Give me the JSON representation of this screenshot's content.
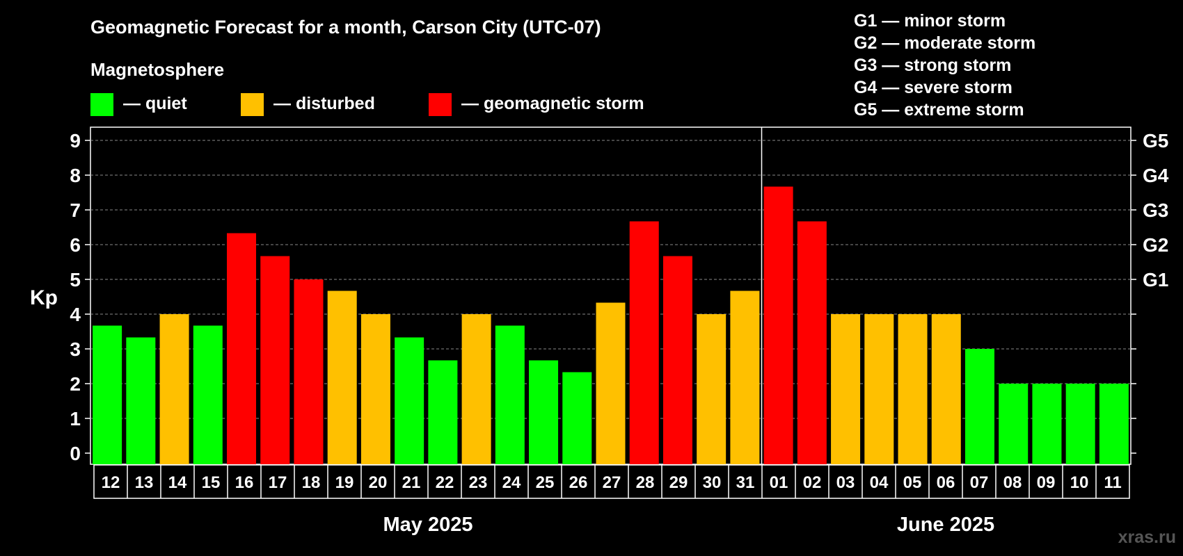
{
  "chart_data": {
    "type": "bar",
    "title": "Geomagnetic Forecast for a month, Carson City (UTC-07)",
    "legend_heading": "Magnetosphere",
    "legend": [
      {
        "label": "— quiet",
        "color": "#00ff00"
      },
      {
        "label": "— disturbed",
        "color": "#ffc000"
      },
      {
        "label": "— geomagnetic storm",
        "color": "#ff0000"
      }
    ],
    "storm_scale": [
      "G1 — minor storm",
      "G2 — moderate storm",
      "G3 — strong storm",
      "G4 — severe storm",
      "G5 — extreme storm"
    ],
    "ylabel": "Kp",
    "ylim": [
      0,
      9
    ],
    "yticks": [
      "0",
      "1",
      "2",
      "3",
      "4",
      "5",
      "6",
      "7",
      "8",
      "9"
    ],
    "right_axis_labels": [
      {
        "label": "G1",
        "kp": 5
      },
      {
        "label": "G2",
        "kp": 6
      },
      {
        "label": "G3",
        "kp": 7
      },
      {
        "label": "G4",
        "kp": 8
      },
      {
        "label": "G5",
        "kp": 9
      }
    ],
    "grid": true,
    "categories": [
      "12",
      "13",
      "14",
      "15",
      "16",
      "17",
      "18",
      "19",
      "20",
      "21",
      "22",
      "23",
      "24",
      "25",
      "26",
      "27",
      "28",
      "29",
      "30",
      "31",
      "01",
      "02",
      "03",
      "04",
      "05",
      "06",
      "07",
      "08",
      "09",
      "10",
      "11"
    ],
    "values": [
      3.67,
      3.33,
      4.0,
      3.67,
      6.33,
      5.67,
      5.0,
      4.67,
      4.0,
      3.33,
      2.67,
      4.0,
      3.67,
      2.67,
      2.33,
      4.33,
      6.67,
      5.67,
      4.0,
      4.67,
      7.67,
      6.67,
      4.0,
      4.0,
      4.0,
      4.0,
      3.0,
      2.0,
      2.0,
      2.0,
      2.0
    ],
    "levels": [
      "quiet",
      "quiet",
      "disturbed",
      "quiet",
      "storm",
      "storm",
      "storm",
      "disturbed",
      "disturbed",
      "quiet",
      "quiet",
      "disturbed",
      "quiet",
      "quiet",
      "quiet",
      "disturbed",
      "storm",
      "storm",
      "disturbed",
      "disturbed",
      "storm",
      "storm",
      "disturbed",
      "disturbed",
      "disturbed",
      "disturbed",
      "quiet",
      "quiet",
      "quiet",
      "quiet",
      "quiet"
    ],
    "colors": {
      "quiet": "#00ff00",
      "disturbed": "#ffc000",
      "storm": "#ff0000"
    },
    "months": [
      {
        "label": "May 2025",
        "start": 0,
        "count": 20
      },
      {
        "label": "June 2025",
        "start": 20,
        "count": 11
      }
    ]
  },
  "watermark": "xras.ru"
}
